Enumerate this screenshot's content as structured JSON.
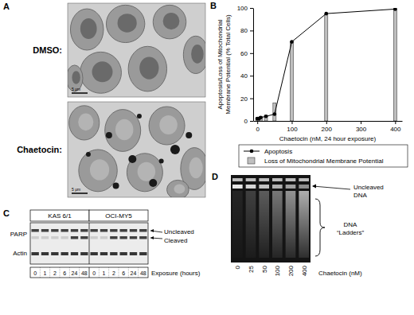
{
  "chart_data": {
    "type": "bar",
    "x_label": "Chaetocin (nM, 24 hour exposure)",
    "y_label": [
      "Apoptosis/Loss of Mitochondrial",
      "Membrane Potential (% Total Cells)"
    ],
    "x": [
      0,
      5,
      10,
      25,
      50,
      100,
      200,
      400
    ],
    "series": [
      {
        "name": "Apoptosis",
        "type": "line",
        "marker": "circle",
        "color": "#000000",
        "values": [
          2,
          2,
          3,
          4,
          6,
          70,
          95,
          99
        ]
      },
      {
        "name": "Loss of Mitochondrial Membrane Potential",
        "type": "bar",
        "color": "#bfbfbf",
        "values": [
          3,
          3,
          4,
          5,
          16,
          70,
          95,
          99
        ]
      }
    ],
    "xlim": [
      -12,
      420
    ],
    "xticks": [
      0,
      100,
      200,
      300,
      400
    ],
    "ylim": [
      0,
      100
    ],
    "yticks": [
      0,
      20,
      40,
      60,
      80,
      100
    ],
    "legend": "bottom",
    "grid": false
  },
  "panels": {
    "a": {
      "label": "A",
      "images": [
        {
          "label": "DMSO:",
          "scale": "5 μm"
        },
        {
          "label": "Chaetocin:",
          "scale": "5 μm"
        }
      ]
    },
    "b": {
      "label": "B"
    },
    "c": {
      "label": "C",
      "cell_lines": [
        "KAS 6/1",
        "OCI-MY5"
      ],
      "proteins": [
        "PARP",
        "Actin"
      ],
      "forms": [
        "Uncleaved",
        "Cleaved"
      ],
      "times": [
        0,
        1,
        2,
        6,
        24,
        48
      ],
      "time_label": "Exposure (hours)"
    },
    "d": {
      "label": "D",
      "lanes": [
        0,
        25,
        50,
        100,
        200,
        400
      ],
      "lane_label": "Chaetocin (nM)",
      "band": [
        "Uncleaved",
        "DNA"
      ],
      "smear": [
        "DNA",
        "“Ladders”"
      ]
    }
  }
}
